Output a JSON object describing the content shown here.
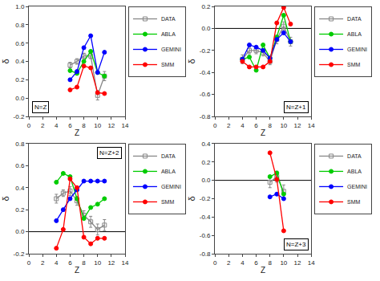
{
  "chart_data": [
    {
      "type": "line",
      "title": "N=Z",
      "xlabel": "Z",
      "ylabel": "δ",
      "xlim": [
        0,
        14
      ],
      "xticks": [
        0,
        2,
        4,
        6,
        8,
        10,
        12,
        14
      ],
      "ylim": [
        -0.2,
        1.0
      ],
      "yticks": [
        -0.2,
        {
          "value": 0.0,
          "label": "0.0"
        },
        0.2,
        0.4,
        0.6,
        0.8,
        {
          "value": 1.0,
          "label": "1.0"
        }
      ],
      "grid": false,
      "legend": "right",
      "x": [
        6,
        7,
        8,
        9,
        10,
        11
      ],
      "series": [
        {
          "name": "DATA",
          "color": "#888888",
          "marker": "square-open",
          "line_style": "solid",
          "values": [
            0.36,
            0.4,
            0.46,
            0.46,
            0.03,
            0.24
          ],
          "yerr": [
            0.03,
            0.03,
            0.03,
            0.03,
            0.05,
            0.05
          ]
        },
        {
          "name": "ABLA",
          "color": "#00cc00",
          "marker": "circle",
          "line_style": "solid",
          "values": [
            0.3,
            0.27,
            0.4,
            0.51,
            0.28,
            0.24
          ]
        },
        {
          "name": "GEMINI",
          "color": "#0000ff",
          "marker": "circle",
          "line_style": "solid",
          "values": [
            0.2,
            0.29,
            0.55,
            0.68,
            0.28,
            0.5
          ]
        },
        {
          "name": "SMM",
          "color": "#ff0000",
          "marker": "circle",
          "line_style": "solid",
          "values": [
            0.09,
            0.12,
            0.35,
            0.33,
            0.06,
            0.05
          ]
        }
      ]
    },
    {
      "type": "line",
      "title": "N=Z+1",
      "xlabel": "Z",
      "ylabel": "δ",
      "xlim": [
        0,
        14
      ],
      "xticks": [
        0,
        2,
        4,
        6,
        8,
        10,
        12,
        14
      ],
      "ylim": [
        -0.8,
        0.2
      ],
      "yticks": [
        -0.8,
        -0.6,
        -0.4,
        -0.2,
        {
          "value": 0.0,
          "label": "0.0"
        },
        0.2
      ],
      "grid": false,
      "legend": "right",
      "hline": 0.0,
      "x": [
        4,
        5,
        6,
        7,
        8,
        9,
        10,
        11
      ],
      "series": [
        {
          "name": "DATA",
          "color": "#888888",
          "marker": "square-open",
          "line_style": "solid",
          "values": [
            -0.28,
            -0.2,
            -0.2,
            -0.22,
            -0.3,
            -0.1,
            0.02,
            -0.12
          ],
          "yerr": [
            0.04,
            0.03,
            0.03,
            0.03,
            0.03,
            0.04,
            0.04,
            0.04
          ]
        },
        {
          "name": "ABLA",
          "color": "#00cc00",
          "marker": "circle",
          "line_style": "solid",
          "values": [
            -0.28,
            -0.26,
            -0.38,
            -0.15,
            -0.27,
            -0.08,
            0.12,
            -0.12
          ]
        },
        {
          "name": "GEMINI",
          "color": "#0000ff",
          "marker": "circle",
          "line_style": "solid",
          "values": [
            -0.28,
            -0.15,
            -0.17,
            -0.2,
            -0.27,
            -0.1,
            -0.04,
            -0.12
          ]
        },
        {
          "name": "SMM",
          "color": "#ff0000",
          "marker": "circle",
          "line_style": "solid",
          "values": [
            -0.3,
            -0.35,
            -0.35,
            -0.35,
            -0.3,
            0.05,
            0.19,
            0.04
          ]
        }
      ]
    },
    {
      "type": "line",
      "title": "N=Z+2",
      "xlabel": "Z",
      "ylabel": "δ",
      "xlim": [
        0,
        14
      ],
      "xticks": [
        0,
        2,
        4,
        6,
        8,
        10,
        12,
        14
      ],
      "ylim": [
        -0.2,
        0.8
      ],
      "yticks": [
        -0.2,
        {
          "value": 0.0,
          "label": "0.0"
        },
        0.2,
        0.4,
        0.6,
        0.8
      ],
      "grid": false,
      "legend": "right",
      "hline": 0.0,
      "x": [
        4,
        5,
        6,
        7,
        8,
        9,
        10,
        11
      ],
      "series": [
        {
          "name": "DATA",
          "color": "#888888",
          "marker": "square-open",
          "line_style": "solid",
          "values": [
            0.3,
            0.35,
            0.37,
            0.28,
            0.15,
            0.09,
            0.02,
            0.06
          ],
          "yerr": [
            0.04,
            0.03,
            0.04,
            0.04,
            0.04,
            0.05,
            0.05,
            0.05
          ]
        },
        {
          "name": "ABLA",
          "color": "#00cc00",
          "marker": "circle",
          "line_style": "solid",
          "values": [
            0.45,
            0.53,
            0.5,
            0.3,
            0.12,
            0.22,
            0.25,
            0.3
          ]
        },
        {
          "name": "GEMINI",
          "color": "#0000ff",
          "marker": "circle",
          "line_style": "solid",
          "values": [
            0.1,
            0.2,
            0.3,
            0.38,
            0.46,
            0.46,
            0.46,
            0.46
          ]
        },
        {
          "name": "SMM",
          "color": "#ff0000",
          "marker": "circle",
          "line_style": "solid",
          "values": [
            -0.15,
            0.02,
            0.48,
            0.4,
            -0.05,
            -0.11,
            -0.06,
            -0.06
          ]
        }
      ]
    },
    {
      "type": "line",
      "title": "N=Z+3",
      "xlabel": "Z",
      "ylabel": "δ",
      "xlim": [
        0,
        14
      ],
      "xticks": [
        0,
        2,
        4,
        6,
        8,
        10,
        12,
        14
      ],
      "ylim": [
        -0.8,
        0.4
      ],
      "yticks": [
        -0.8,
        -0.6,
        -0.4,
        -0.2,
        {
          "value": 0.0,
          "label": "0.0"
        },
        0.2,
        0.4
      ],
      "grid": false,
      "legend": "right",
      "hline": 0.0,
      "x": [
        8,
        9,
        10
      ],
      "series": [
        {
          "name": "DATA",
          "color": "#888888",
          "marker": "square-open",
          "line_style": "solid",
          "values": [
            -0.02,
            0.04,
            -0.12
          ],
          "yerr": [
            0.06,
            0.06,
            0.07
          ]
        },
        {
          "name": "ABLA",
          "color": "#00cc00",
          "marker": "circle",
          "line_style": "solid",
          "values": [
            0.04,
            0.08,
            -0.15
          ]
        },
        {
          "name": "GEMINI",
          "color": "#0000ff",
          "marker": "circle",
          "line_style": "solid",
          "values": [
            -0.18,
            -0.15,
            -0.2
          ]
        },
        {
          "name": "SMM",
          "color": "#ff0000",
          "marker": "circle",
          "line_style": "solid",
          "values": [
            0.3,
            0.01,
            -0.55
          ]
        }
      ]
    }
  ]
}
